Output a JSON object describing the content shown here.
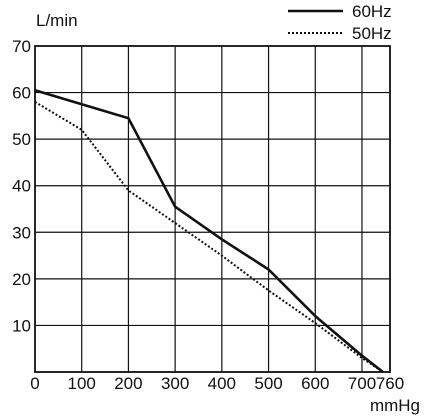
{
  "chart_data": {
    "type": "line",
    "title": "",
    "ylabel": "L/min",
    "xlabel": "mmHg",
    "xlim": [
      0,
      760
    ],
    "ylim": [
      0,
      70
    ],
    "x_ticks": [
      0,
      100,
      200,
      300,
      400,
      500,
      600,
      700,
      760
    ],
    "y_ticks": [
      10,
      20,
      30,
      40,
      50,
      60,
      70
    ],
    "grid": true,
    "legend_position": "top-right",
    "series": [
      {
        "name": "60Hz",
        "style": "solid",
        "color": "#111111",
        "x": [
          0,
          100,
          200,
          300,
          400,
          500,
          600,
          700,
          745
        ],
        "y": [
          60.5,
          57.5,
          54.5,
          35.5,
          28.5,
          22,
          12,
          3.5,
          0
        ]
      },
      {
        "name": "50Hz",
        "style": "dotted",
        "color": "#111111",
        "x": [
          0,
          100,
          200,
          300,
          400,
          500,
          600,
          700,
          745
        ],
        "y": [
          58,
          52,
          39,
          32,
          25,
          17.5,
          10.5,
          3,
          0
        ]
      }
    ]
  }
}
